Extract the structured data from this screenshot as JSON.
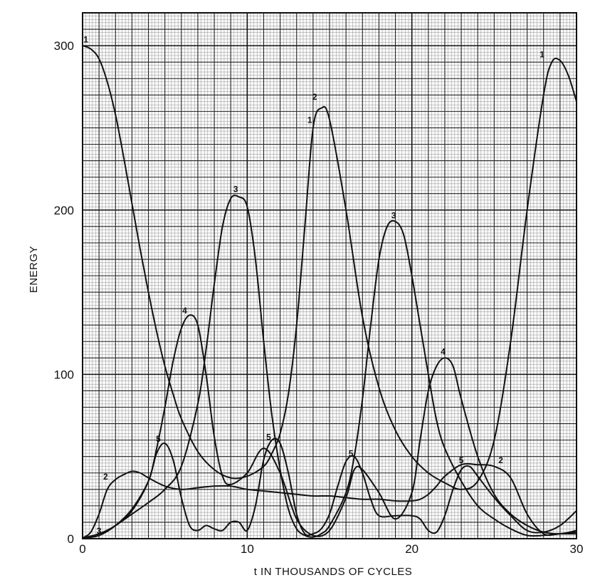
{
  "chart_data": {
    "type": "line",
    "title": "",
    "xlabel": "t IN THOUSANDS OF CYCLES",
    "ylabel": "ENERGY",
    "xlim": [
      0,
      30
    ],
    "ylim": [
      0,
      320
    ],
    "xticks": [
      0,
      10,
      20,
      30
    ],
    "yticks": [
      0,
      100,
      200,
      300
    ],
    "grid": true,
    "legend": "none",
    "series": [
      {
        "name": "1",
        "x": [
          0,
          0.5,
          1,
          1.5,
          2,
          2.5,
          3,
          3.5,
          4,
          4.5,
          5,
          5.5,
          6,
          7,
          8,
          9,
          10,
          11,
          11.5,
          12,
          12.5,
          13,
          13.5,
          14,
          14.5,
          15,
          16,
          17,
          18,
          19,
          20,
          21,
          22,
          23,
          24,
          25,
          26,
          27,
          28,
          28.5,
          29,
          29.5,
          30
        ],
        "y": [
          300,
          298,
          292,
          278,
          258,
          232,
          204,
          176,
          150,
          126,
          105,
          88,
          73,
          53,
          42,
          37,
          38,
          44,
          52,
          64,
          88,
          130,
          190,
          250,
          262,
          255,
          200,
          135,
          92,
          66,
          50,
          40,
          34,
          30,
          35,
          60,
          120,
          200,
          270,
          290,
          291,
          282,
          266
        ]
      },
      {
        "name": "2",
        "x": [
          0,
          0.5,
          1,
          1.5,
          2,
          2.5,
          3,
          3.5,
          4,
          5,
          6,
          7,
          8,
          9,
          10,
          11,
          12,
          13,
          14,
          15,
          16,
          17,
          18,
          19,
          20,
          20.5,
          21,
          21.5,
          22,
          23,
          24,
          25,
          26,
          27,
          28,
          29,
          30
        ],
        "y": [
          0,
          4,
          15,
          30,
          36,
          39,
          41,
          40,
          37,
          32,
          30,
          31,
          32,
          32,
          30,
          29,
          28,
          27,
          26,
          26,
          25,
          24,
          24,
          23,
          23,
          24,
          27,
          32,
          38,
          45,
          45,
          44,
          37,
          15,
          3,
          3,
          3
        ]
      },
      {
        "name": "3",
        "x": [
          0,
          1,
          2,
          3,
          4,
          5,
          6,
          7,
          7.5,
          8,
          8.5,
          9,
          9.5,
          10,
          10.5,
          11,
          11.5,
          12,
          12.5,
          13,
          13.5,
          14,
          14.5,
          15,
          16,
          16.5,
          17,
          17.5,
          18,
          18.5,
          19,
          19.5,
          20,
          20.5,
          21,
          21.5,
          22,
          23,
          24,
          25,
          26,
          27,
          28,
          29,
          30
        ],
        "y": [
          0,
          2,
          8,
          15,
          22,
          30,
          44,
          82,
          115,
          155,
          190,
          207,
          208,
          202,
          170,
          120,
          75,
          42,
          18,
          6,
          2,
          1,
          3,
          8,
          28,
          50,
          85,
          130,
          170,
          190,
          193,
          185,
          160,
          130,
          100,
          72,
          55,
          35,
          20,
          12,
          6,
          2,
          2,
          3,
          4
        ]
      },
      {
        "name": "4",
        "x": [
          0,
          1,
          2,
          3,
          4,
          4.5,
          5,
          5.5,
          6,
          6.5,
          7,
          7.5,
          8,
          8.5,
          9,
          10,
          11,
          12,
          13,
          14,
          15,
          16,
          16.5,
          17,
          18,
          19,
          20,
          20.5,
          21,
          21.5,
          22,
          22.5,
          23,
          24,
          25,
          26,
          27,
          28,
          29,
          30
        ],
        "y": [
          0,
          3,
          8,
          17,
          35,
          55,
          80,
          108,
          128,
          136,
          130,
          100,
          62,
          38,
          33,
          40,
          55,
          40,
          12,
          2,
          5,
          25,
          42,
          42,
          28,
          12,
          28,
          60,
          90,
          105,
          110,
          105,
          85,
          50,
          27,
          15,
          8,
          4,
          3,
          5
        ]
      },
      {
        "name": "5",
        "x": [
          0,
          1,
          2,
          3,
          4,
          4.5,
          5,
          5.5,
          6,
          6.5,
          7,
          7.5,
          8,
          8.5,
          9,
          9.5,
          10,
          10.5,
          11,
          11.5,
          12,
          12.5,
          13,
          13.5,
          14,
          14.5,
          15,
          15.5,
          16,
          16.5,
          17,
          17.5,
          18,
          19,
          20,
          20.5,
          21,
          21.5,
          22,
          22.5,
          23,
          23.5,
          24,
          25,
          26,
          27,
          28,
          29,
          30
        ],
        "y": [
          0,
          2,
          8,
          18,
          35,
          52,
          58,
          48,
          25,
          8,
          5,
          8,
          6,
          5,
          10,
          10,
          5,
          20,
          48,
          60,
          58,
          40,
          15,
          3,
          3,
          6,
          15,
          32,
          47,
          50,
          40,
          24,
          14,
          14,
          14,
          12,
          5,
          4,
          14,
          30,
          42,
          44,
          38,
          25,
          14,
          5,
          4,
          8,
          17
        ]
      }
    ],
    "curve_labels": [
      {
        "series": "1",
        "text": "1",
        "x": 0.2,
        "y": 302
      },
      {
        "series": "1",
        "text": "1",
        "x": 27.9,
        "y": 293
      },
      {
        "series": "1",
        "text": "1",
        "x": 13.8,
        "y": 253
      },
      {
        "series": "2",
        "text": "2",
        "x": 14.1,
        "y": 267
      },
      {
        "series": "2",
        "text": "2",
        "x": 1.4,
        "y": 36
      },
      {
        "series": "2",
        "text": "2",
        "x": 25.4,
        "y": 46
      },
      {
        "series": "3",
        "text": "3",
        "x": 9.3,
        "y": 211
      },
      {
        "series": "3",
        "text": "3",
        "x": 18.9,
        "y": 195
      },
      {
        "series": "3",
        "text": "3",
        "x": 1.0,
        "y": 3
      },
      {
        "series": "4",
        "text": "4",
        "x": 6.2,
        "y": 137
      },
      {
        "series": "4",
        "text": "4",
        "x": 21.9,
        "y": 112
      },
      {
        "series": "5",
        "text": "5",
        "x": 4.6,
        "y": 59
      },
      {
        "series": "5",
        "text": "5",
        "x": 11.3,
        "y": 60
      },
      {
        "series": "5",
        "text": "5",
        "x": 16.3,
        "y": 50
      },
      {
        "series": "5",
        "text": "5",
        "x": 23.0,
        "y": 46
      }
    ]
  }
}
